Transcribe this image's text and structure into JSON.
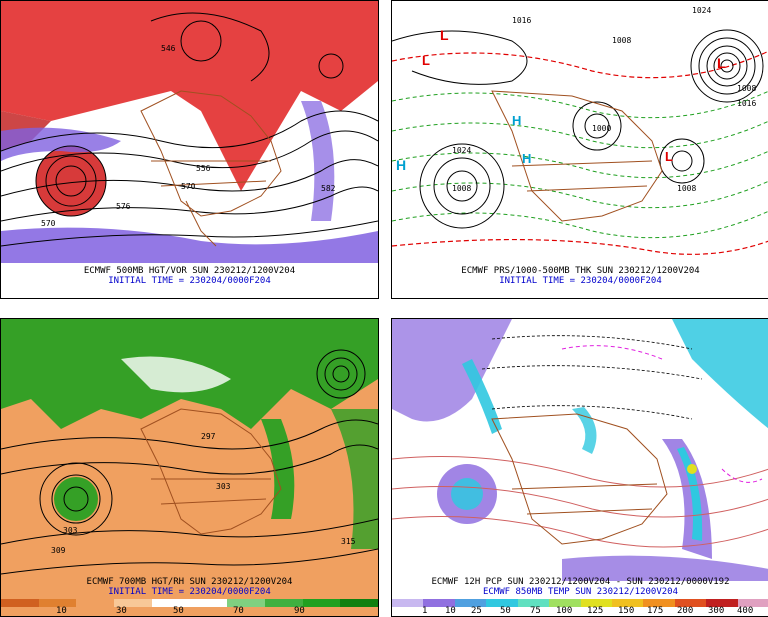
{
  "panels": {
    "p500": {
      "line1": "ECMWF 500MB HGT/VOR SUN 230212/1200V204",
      "line2": "INITIAL TIME = 230204/0000F204",
      "contour_labels": [
        "546",
        "570",
        "576",
        "582",
        "570",
        "556"
      ]
    },
    "pmslp": {
      "line1": "ECMWF PRS/1000-500MB THK SUN 230212/1200V204",
      "line2": "INITIAL TIME = 230204/0000F204",
      "contour_labels": [
        "1016",
        "1008",
        "1024",
        "1008",
        "1000",
        "1008",
        "1008",
        "1016",
        "1024"
      ],
      "highs_lows": [
        {
          "letter": "H",
          "color": "#00a0d0"
        },
        {
          "letter": "H",
          "color": "#00a0d0"
        },
        {
          "letter": "H",
          "color": "#00a0d0"
        },
        {
          "letter": "L",
          "color": "#e00000"
        },
        {
          "letter": "L",
          "color": "#e00000"
        },
        {
          "letter": "L",
          "color": "#e00000"
        },
        {
          "letter": "L",
          "color": "#e00000"
        }
      ]
    },
    "p700": {
      "line1": "ECMWF 700MB HGT/RH SUN 230212/1200V204",
      "line2": "INITIAL TIME = 230204/0000F204",
      "contour_labels": [
        "303",
        "309",
        "303",
        "297",
        "315"
      ],
      "colorbar": [
        "10",
        "30",
        "50",
        "70",
        "90"
      ]
    },
    "p850": {
      "line1": "ECMWF 12H PCP SUN 230212/1200V204 - SUN 230212/0000V192",
      "line2": "ECMWF 850MB TEMP SUN 230212/1200V204",
      "colorbar": [
        "1",
        "10",
        "25",
        "50",
        "75",
        "100",
        "125",
        "150",
        "175",
        "200",
        "300",
        "400"
      ]
    }
  },
  "colors": {
    "vorticity": "#e02020",
    "vorticity_neg": "#8060e0",
    "rh_dry": "#f0a060",
    "rh_moist": "#20a020",
    "pcp_light": "#9070e0",
    "pcp_mid": "#30c8e0",
    "pcp_heavy": "#e0e020",
    "border": "#a05020"
  }
}
